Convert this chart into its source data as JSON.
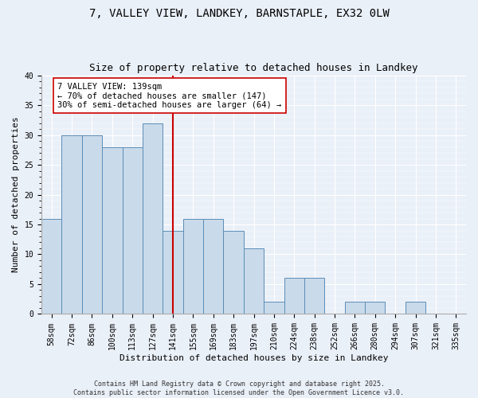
{
  "title1": "7, VALLEY VIEW, LANDKEY, BARNSTAPLE, EX32 0LW",
  "title2": "Size of property relative to detached houses in Landkey",
  "xlabel": "Distribution of detached houses by size in Landkey",
  "ylabel": "Number of detached properties",
  "categories": [
    "58sqm",
    "72sqm",
    "86sqm",
    "100sqm",
    "113sqm",
    "127sqm",
    "141sqm",
    "155sqm",
    "169sqm",
    "183sqm",
    "197sqm",
    "210sqm",
    "224sqm",
    "238sqm",
    "252sqm",
    "266sqm",
    "280sqm",
    "294sqm",
    "307sqm",
    "321sqm",
    "335sqm"
  ],
  "values": [
    16,
    30,
    30,
    28,
    28,
    32,
    14,
    16,
    16,
    14,
    11,
    2,
    6,
    6,
    0,
    2,
    2,
    0,
    2,
    0,
    0
  ],
  "bar_color": "#c9daea",
  "bar_edge_color": "#5b8db8",
  "vline_x": 6,
  "vline_color": "#cc0000",
  "annotation_text": "7 VALLEY VIEW: 139sqm\n← 70% of detached houses are smaller (147)\n30% of semi-detached houses are larger (64) →",
  "annotation_box_color": "#ffffff",
  "annotation_box_edge": "#cc0000",
  "ylim": [
    0,
    40
  ],
  "yticks": [
    0,
    5,
    10,
    15,
    20,
    25,
    30,
    35,
    40
  ],
  "background_color": "#eaf0f8",
  "footer_text": "Contains HM Land Registry data © Crown copyright and database right 2025.\nContains public sector information licensed under the Open Government Licence v3.0.",
  "title_fontsize": 10,
  "subtitle_fontsize": 9,
  "axis_label_fontsize": 8,
  "tick_fontsize": 7,
  "annotation_fontsize": 7.5,
  "footer_fontsize": 6
}
